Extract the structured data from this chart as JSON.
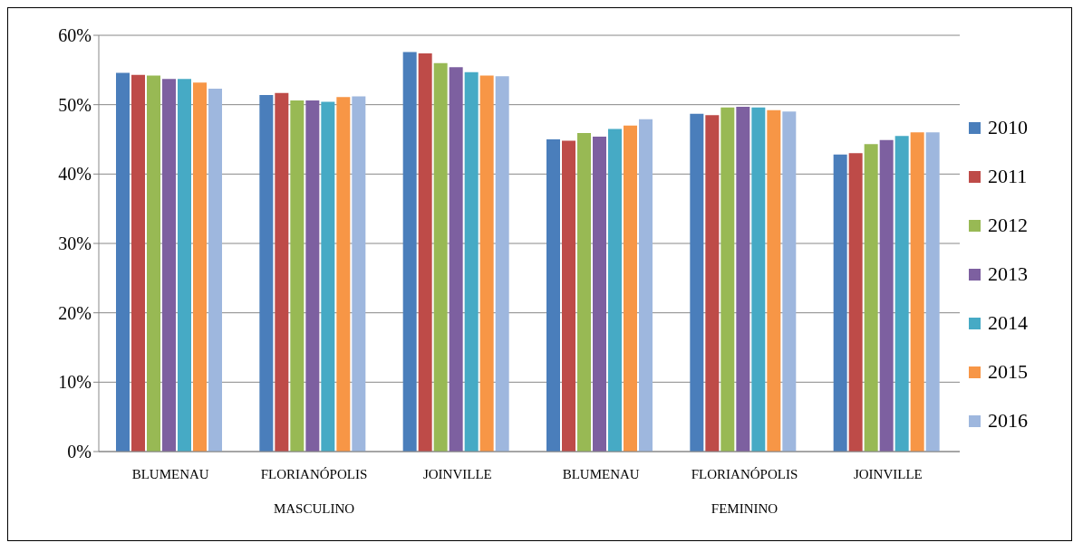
{
  "chart_data": {
    "type": "bar",
    "categories": [
      "BLUMENAU",
      "FLORIANÓPOLIS",
      "JOINVILLE",
      "BLUMENAU",
      "FLORIANÓPOLIS",
      "JOINVILLE"
    ],
    "annotations": [
      "MASCULINO",
      "FEMININO"
    ],
    "series": [
      {
        "name": "2010",
        "color": "#4a7ebb",
        "values": [
          54.6,
          51.4,
          57.6,
          45.0,
          48.7,
          42.8
        ]
      },
      {
        "name": "2011",
        "color": "#be4b48",
        "values": [
          54.3,
          51.7,
          57.4,
          44.8,
          48.5,
          43.0
        ]
      },
      {
        "name": "2012",
        "color": "#98b954",
        "values": [
          54.2,
          50.6,
          56.0,
          45.9,
          49.6,
          44.3
        ]
      },
      {
        "name": "2013",
        "color": "#7d60a0",
        "values": [
          53.7,
          50.6,
          55.4,
          45.4,
          49.7,
          44.9
        ]
      },
      {
        "name": "2014",
        "color": "#46aac5",
        "values": [
          53.7,
          50.4,
          54.7,
          46.5,
          49.6,
          45.5
        ]
      },
      {
        "name": "2015",
        "color": "#f79646",
        "values": [
          53.2,
          51.1,
          54.2,
          47.0,
          49.2,
          46.0
        ]
      },
      {
        "name": "2016",
        "color": "#9eb7de",
        "values": [
          52.3,
          51.2,
          54.1,
          47.9,
          49.0,
          46.0
        ]
      }
    ],
    "ylim": [
      0,
      60
    ],
    "yticks": [
      {
        "value": 0,
        "label": "0%"
      },
      {
        "value": 10,
        "label": "10%"
      },
      {
        "value": 20,
        "label": "20%"
      },
      {
        "value": 30,
        "label": "30%"
      },
      {
        "value": 40,
        "label": "40%"
      },
      {
        "value": 50,
        "label": "50%"
      },
      {
        "value": 60,
        "label": "60%"
      }
    ],
    "grid": "y",
    "legend": "right"
  }
}
